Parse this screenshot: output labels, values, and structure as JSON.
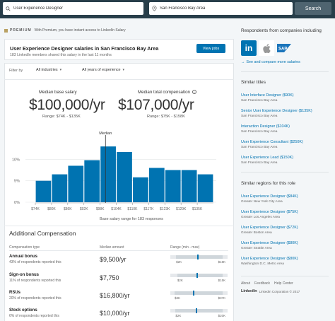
{
  "search": {
    "keyword": "User Experience Designer",
    "location": "San Francisco Bay Area",
    "button": "Search"
  },
  "premium": {
    "tag": "PREMIUM",
    "text": "With Premium, you have instant access to LinkedIn Salary"
  },
  "header": {
    "title": "User Experience Designer salaries in San Francisco Bay Area",
    "subtitle": "183 LinkedIn members shared this salary in the last 11 months",
    "view_jobs": "View jobs"
  },
  "filters": {
    "label": "Filter by",
    "industries": "All industries",
    "experience": "All years of experience"
  },
  "stats": {
    "median_base_label": "Median base salary",
    "median_base_value": "$100,000/yr",
    "median_base_range": "Range: $74K - $135K",
    "median_total_label": "Median total compensation",
    "median_total_value": "$107,000/yr",
    "median_total_range": "Range: $75K - $158K"
  },
  "chart_data": {
    "type": "bar",
    "title": "",
    "xlabel": "Base salary range for 183 responses",
    "ylabel": "",
    "median_label": "Median",
    "median_value": 100,
    "y_ticks": [
      "10%",
      "5%",
      "0%"
    ],
    "y_tick_values": [
      10,
      5,
      0
    ],
    "ylim": [
      0,
      15
    ],
    "x_ticks": [
      "$74K",
      "$80K",
      "$86K",
      "$92K",
      "$98K",
      "$104K",
      "$110K",
      "$117K",
      "$123K",
      "$129K",
      "$135K"
    ],
    "x_tick_values": [
      74,
      80,
      86,
      92,
      98,
      104,
      110,
      117,
      123,
      129,
      135
    ],
    "bins": [
      74,
      80,
      86,
      92,
      98,
      104,
      110,
      117,
      123,
      129,
      135
    ],
    "values": [
      5,
      6.5,
      8.5,
      9.8,
      13,
      11.7,
      5.8,
      8,
      7.5,
      7.5,
      6.5
    ],
    "bar_color": "#0073b1",
    "grid": true
  },
  "additional": {
    "title": "Additional Compensation",
    "col_type": "Compensation type",
    "col_median": "Median amount",
    "col_range": "Range (min - max)",
    "rows": [
      {
        "name": "Annual bonus",
        "sub": "43% of respondents reported this",
        "value": "$9,500/yr",
        "min": "$2K",
        "max": "$18K",
        "min_v": 2,
        "max_v": 18,
        "median_v": 9.5
      },
      {
        "name": "Sign-on bonus",
        "sub": "11% of respondents reported this",
        "value": "$7,750",
        "min": "$2K",
        "max": "$15K",
        "min_v": 2,
        "max_v": 15,
        "median_v": 7.75
      },
      {
        "name": "RSUs",
        "sub": "20% of respondents reported this",
        "value": "$16,800/yr",
        "min": "$3K",
        "max": "$37K",
        "min_v": 3,
        "max_v": 37,
        "median_v": 16.8
      },
      {
        "name": "Stock options",
        "sub": "6% of respondents reported this",
        "value": "$10,000/yr",
        "min": "$2K",
        "max": "$20K",
        "min_v": 2,
        "max_v": 20,
        "median_v": 10
      }
    ]
  },
  "sidebar": {
    "companies_title": "Respondents from companies including",
    "see_more": "See and compare more salaries",
    "similar_titles_header": "Similar titles",
    "similar_titles": [
      {
        "title": "User Interface Designer ($90K)",
        "loc": "San Francisco Bay Area"
      },
      {
        "title": "Senior User Experience Designer ($135K)",
        "loc": "San Francisco Bay Area"
      },
      {
        "title": "Interaction Designer ($104K)",
        "loc": "San Francisco Bay Area"
      },
      {
        "title": "User Experience Consultant ($250K)",
        "loc": "San Francisco Bay Area"
      },
      {
        "title": "User Experience Lead ($150K)",
        "loc": "San Francisco Bay Area"
      }
    ],
    "similar_regions_header": "Similar regions for this role",
    "similar_regions": [
      {
        "title": "User Experience Designer ($84K)",
        "loc": "Greater New York City Area"
      },
      {
        "title": "User Experience Designer ($75K)",
        "loc": "Greater Los Angeles Area"
      },
      {
        "title": "User Experience Designer ($72K)",
        "loc": "Greater Boston Area"
      },
      {
        "title": "User Experience Designer ($80K)",
        "loc": "Greater Seattle Area"
      },
      {
        "title": "User Experience Designer ($80K)",
        "loc": "Washington D.C. Metro Area"
      }
    ],
    "footer_links": [
      "About",
      "Feedback",
      "Help Center"
    ],
    "brand": "LinkedIn",
    "copyright": "LinkedIn Corporation © 2017",
    "company_logos": [
      "linkedin-logo",
      "apple-logo",
      "sap-logo"
    ]
  }
}
